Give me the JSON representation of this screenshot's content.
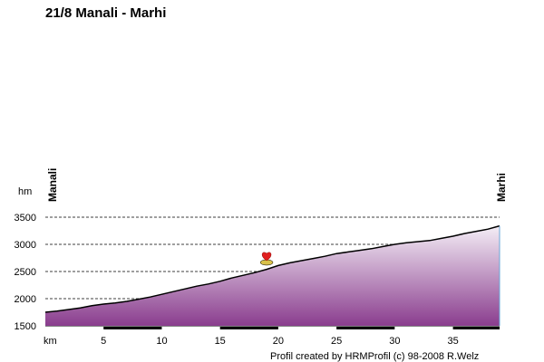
{
  "chart_data": {
    "type": "area",
    "title": "21/8 Manali - Marhi",
    "ylabel": "hm",
    "xlabel": "km",
    "ylim": [
      1500,
      3500
    ],
    "xlim": [
      0,
      39
    ],
    "yticks": [
      1500,
      2000,
      2500,
      3000,
      3500
    ],
    "xticks": [
      5,
      10,
      15,
      20,
      25,
      30,
      35
    ],
    "grid": true,
    "start_label": "Manali",
    "end_label": "Marhi",
    "credit": "Profil created by HRMProfil (c) 98-2008 R.Welz",
    "marker": {
      "x": 19.0,
      "y": 2600,
      "icon": "heart-icon"
    },
    "x": [
      0,
      1,
      2,
      3,
      4,
      5,
      6,
      7,
      8,
      9,
      10,
      11,
      12,
      13,
      14,
      15,
      16,
      17,
      18,
      19,
      20,
      21,
      22,
      23,
      24,
      25,
      26,
      27,
      28,
      29,
      30,
      31,
      32,
      33,
      34,
      35,
      36,
      37,
      38,
      39
    ],
    "y": [
      1750,
      1770,
      1800,
      1830,
      1870,
      1900,
      1920,
      1950,
      1990,
      2030,
      2080,
      2130,
      2180,
      2230,
      2270,
      2320,
      2380,
      2430,
      2480,
      2540,
      2610,
      2660,
      2700,
      2740,
      2780,
      2830,
      2860,
      2890,
      2920,
      2960,
      3000,
      3030,
      3050,
      3070,
      3110,
      3150,
      3200,
      3240,
      3280,
      3340
    ]
  },
  "colors": {
    "area_top": "#f4eef6",
    "area_bottom": "#8a3d8e",
    "line": "#000000",
    "grid": "#000000",
    "end_marker": "#6aa8d8"
  }
}
